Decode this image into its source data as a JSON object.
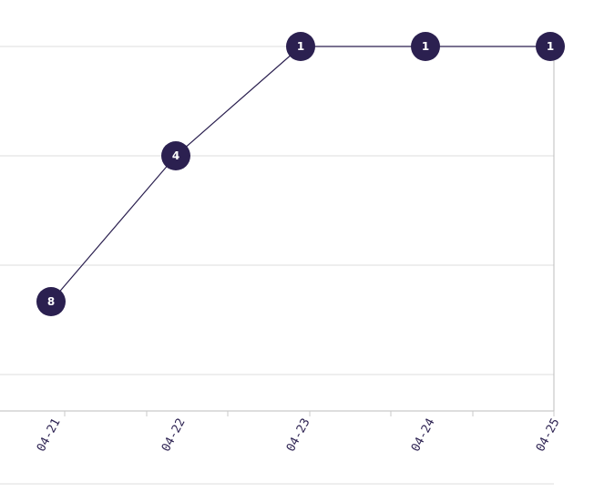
{
  "chart_data": {
    "type": "line",
    "categories": [
      "04-21",
      "04-22",
      "04-23",
      "04-24",
      "04-25"
    ],
    "series": [
      {
        "values": [
          8,
          4,
          1,
          1,
          1
        ],
        "labels": [
          "8",
          "4",
          "1",
          "1",
          "1"
        ]
      }
    ],
    "y_inverted": true,
    "ylim": [
      1,
      11
    ],
    "y_gridlines": [
      1,
      4,
      7,
      10,
      13
    ],
    "grid": true,
    "legend": "none",
    "colors": {
      "line": "#2a1f4f",
      "marker": "#2b2050",
      "marker_text": "#ffffff",
      "grid": "#dcdcdc"
    }
  }
}
